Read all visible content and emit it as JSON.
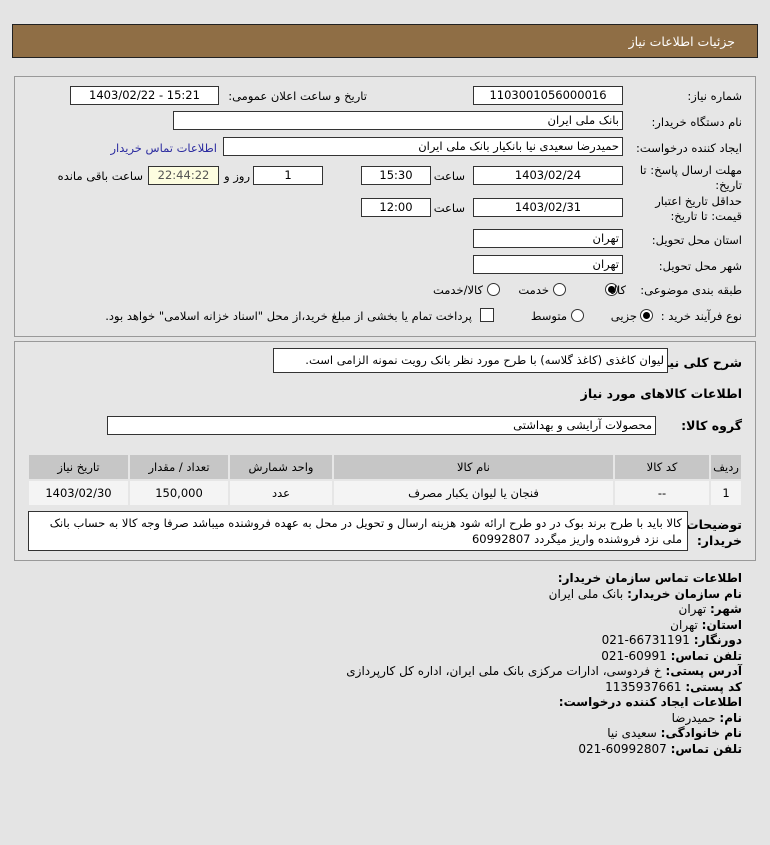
{
  "header": {
    "title": "جزئیات اطلاعات نیاز"
  },
  "form": {
    "need_number_label": "شماره نیاز:",
    "need_number": "1103001056000016",
    "announce_label": "تاریخ و ساعت اعلان عمومی:",
    "announce_value": "1403/02/22 - 15:21",
    "buyer_org_label": "نام دستگاه خریدار:",
    "buyer_org": "بانک ملی ایران",
    "creator_label": "ایجاد کننده درخواست:",
    "creator": "حمیدرضا سعیدی نیا بانکیار بانک ملی ایران",
    "contact_link": "اطلاعات تماس خریدار",
    "deadline_label": "مهلت ارسال پاسخ: تا تاریخ:",
    "deadline_date": "1403/02/24",
    "time_label": "ساعت",
    "deadline_time": "15:30",
    "days": "1",
    "days_label": "روز و",
    "remaining": "22:44:22",
    "remaining_label": "ساعت باقی مانده",
    "validity_label": "حداقل تاریخ اعتبار قیمت: تا تاریخ:",
    "validity_date": "1403/02/31",
    "validity_time": "12:00",
    "province_label": "استان محل تحویل:",
    "province": "تهران",
    "city_label": "شهر محل تحویل:",
    "city": "تهران",
    "category_label": "طبقه بندی موضوعی:",
    "category_options": [
      "کالا",
      "خدمت",
      "کالا/خدمت"
    ],
    "category_selected": "کالا",
    "process_label": "نوع فرآیند خرید :",
    "process_options": [
      "جزیی",
      "متوسط"
    ],
    "process_selected": "جزیی",
    "treasury_text": "پرداخت تمام یا بخشی از مبلغ خرید،از محل \"اسناد خزانه اسلامی\" خواهد بود.",
    "treasury_checked": false
  },
  "details": {
    "summary_label": "شرح کلی نیاز:",
    "summary": "لیوان کاغذی (کاغذ گلاسه) با طرح مورد نظر بانک رویت نمونه الزامی است.",
    "goods_title": "اطلاعات کالاهای مورد نیاز",
    "group_label": "گروه کالا:",
    "group": "محصولات آرایشی و بهداشتی",
    "table": {
      "headers": [
        "ردیف",
        "کد کالا",
        "نام کالا",
        "واحد شمارش",
        "تعداد / مقدار",
        "تاریخ نیاز"
      ],
      "rows": [
        [
          "1",
          "--",
          "فنجان یا لیوان یکبار مصرف",
          "عدد",
          "150,000",
          "1403/02/30"
        ]
      ]
    },
    "notes_label": "توضیحات خریدار:",
    "notes": "کالا باید با طرح برند بوک در دو طرح ارائه شود هزینه ارسال و تحویل در محل به عهده فروشنده میباشد صرفا وجه کالا به حساب بانک ملی نزد فروشنده واریز میگردد 60992807"
  },
  "contact": {
    "org_title": "اطلاعات تماس سازمان خریدار:",
    "org_name_label": "نام سازمان خریدار:",
    "org_name": "بانک ملی ایران",
    "city_label": "شهر:",
    "city": "تهران",
    "province_label": "استان:",
    "province": "تهران",
    "fax_label": "دورنگار:",
    "fax": "66731191-021",
    "phone_label": "تلفن تماس:",
    "phone": "60991-021",
    "address_label": "آدرس پستی:",
    "address": "خ فردوسی، ادارات مرکزی بانک ملی ایران، اداره کل کارپردازی",
    "postal_label": "کد پستی:",
    "postal": "1135937661",
    "creator_title": "اطلاعات ایجاد کننده درخواست:",
    "first_name_label": "نام:",
    "first_name": "حمیدرضا",
    "last_name_label": "نام خانوادگی:",
    "last_name": "سعیدی نیا",
    "creator_phone_label": "تلفن تماس:",
    "creator_phone": "60992807-021"
  },
  "colors": {
    "header": "#8f6e45",
    "link": "#2c2ca0"
  }
}
